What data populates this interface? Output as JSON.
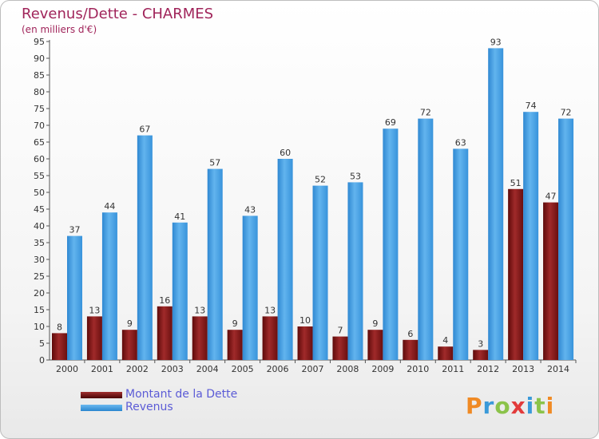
{
  "title": "Revenus/Dette - CHARMES",
  "subtitle": "(en milliers d'€)",
  "colors": {
    "dette": "#7a1414",
    "revenus": "#3d9be0",
    "title": "#a0245a",
    "legend_text": "#5b5bd6"
  },
  "legend": [
    {
      "label": "Montant de la Dette",
      "color_key": "dette"
    },
    {
      "label": "Revenus",
      "color_key": "revenus"
    }
  ],
  "logo": {
    "text": "Proxiti"
  },
  "chart_data": {
    "type": "bar",
    "categories": [
      "2000",
      "2001",
      "2002",
      "2003",
      "2004",
      "2005",
      "2006",
      "2007",
      "2008",
      "2009",
      "2010",
      "2011",
      "2012",
      "2013",
      "2014"
    ],
    "series": [
      {
        "name": "Montant de la Dette",
        "values": [
          8,
          13,
          9,
          16,
          13,
          9,
          13,
          10,
          7,
          9,
          6,
          4,
          3,
          51,
          47
        ]
      },
      {
        "name": "Revenus",
        "values": [
          37,
          44,
          67,
          41,
          57,
          43,
          60,
          52,
          53,
          69,
          72,
          63,
          93,
          74,
          72
        ]
      }
    ],
    "ylim": [
      0,
      95
    ],
    "yticks": [
      0,
      5,
      10,
      15,
      20,
      25,
      30,
      35,
      40,
      45,
      50,
      55,
      60,
      65,
      70,
      75,
      80,
      85,
      90,
      95
    ],
    "grid": false,
    "legend_position": "bottom-left"
  }
}
